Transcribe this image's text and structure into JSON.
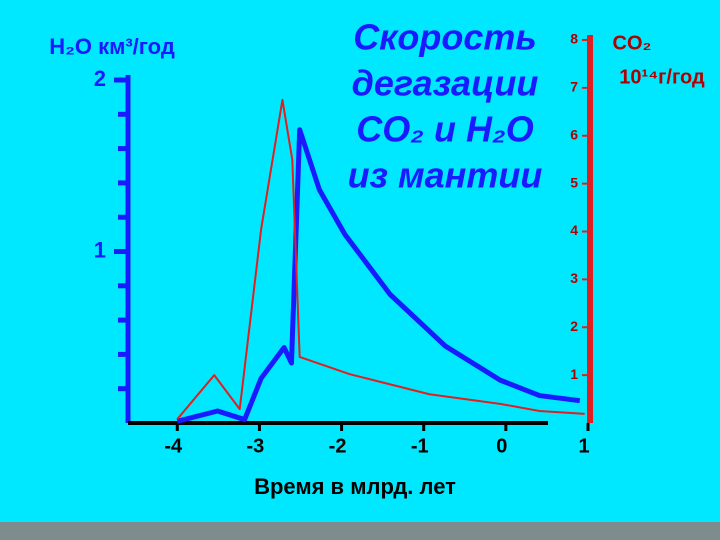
{
  "chart_data": {
    "type": "line",
    "title": [
      "Скорость",
      "дегазации",
      "CO₂ и H₂O",
      "из мантии"
    ],
    "y_label": "H₂O км³/год",
    "y2_label": [
      "CO₂",
      "10¹⁴г/год"
    ],
    "x_label": "Время в млрд. лет",
    "xlim": [
      -4.6,
      1
    ],
    "xticks": [
      -4,
      -3,
      -2,
      -1,
      0,
      1
    ],
    "ylim": [
      0,
      2
    ],
    "yticks": [
      1,
      2
    ],
    "y_minor_ticks": [
      0.2,
      0.4,
      0.6,
      0.8,
      1.2,
      1.4,
      1.6,
      1.8
    ],
    "y2lim": [
      0,
      8
    ],
    "y2ticks": [
      1,
      2,
      3,
      4,
      5,
      6,
      7,
      8
    ],
    "series": [
      {
        "color": "#1a1aff",
        "axis": "y",
        "x": [
          -4,
          -3.51,
          -3.18,
          -2.98,
          -2.7,
          -2.61,
          -2.51,
          -2.27,
          -1.96,
          -1.41,
          -0.74,
          -0.07,
          0.41,
          0.9
        ],
        "values": [
          0.01,
          0.07,
          0.02,
          0.26,
          0.44,
          0.35,
          1.71,
          1.36,
          1.1,
          0.75,
          0.45,
          0.25,
          0.16,
          0.13
        ]
      },
      {
        "color": "#e02020",
        "axis": "y2",
        "x": [
          -4,
          -3.55,
          -3.24,
          -2.98,
          -2.72,
          -2.6,
          -2.51,
          -1.9,
          -0.93,
          -0.07,
          0.41,
          0.96
        ],
        "values": [
          0.08,
          1.0,
          0.29,
          4.04,
          6.75,
          5.5,
          1.38,
          1.02,
          0.6,
          0.4,
          0.25,
          0.19
        ]
      }
    ]
  }
}
